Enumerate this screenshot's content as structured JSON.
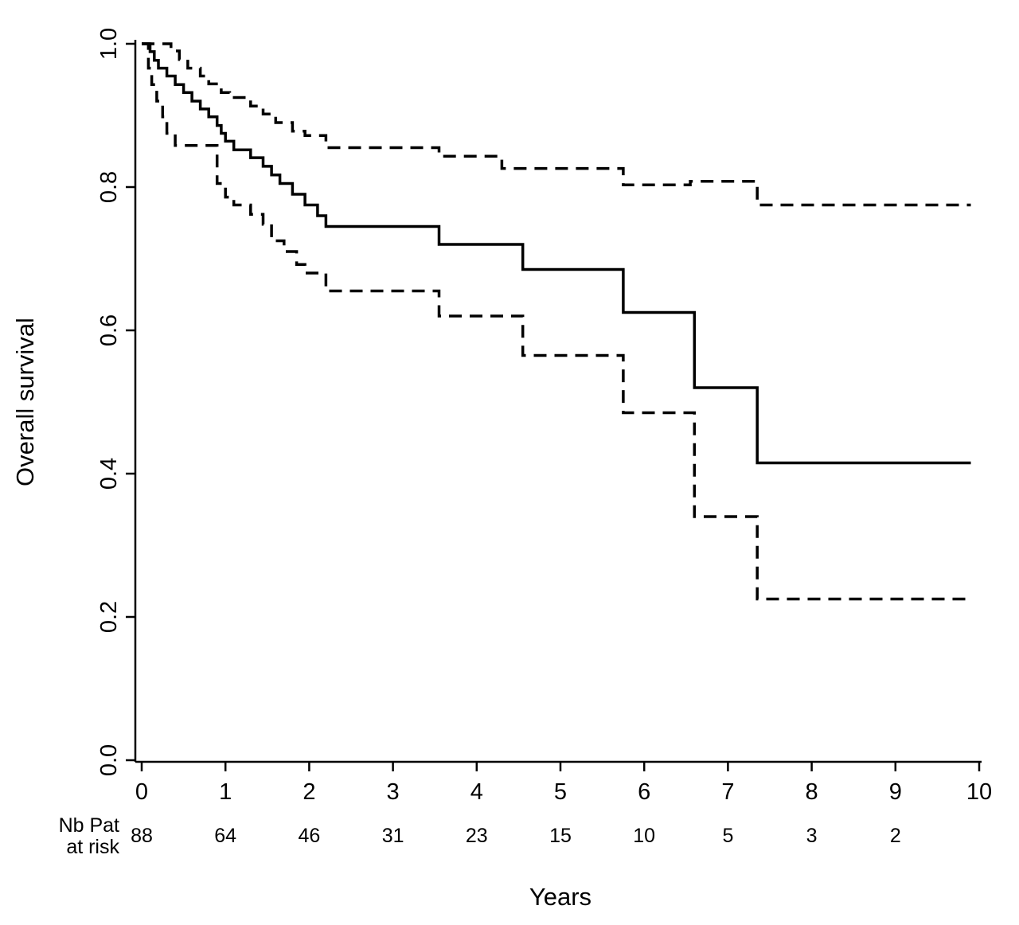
{
  "chart_data": {
    "type": "line",
    "subtype": "kaplan-meier-step",
    "title": "",
    "xlabel": "Years",
    "ylabel": "Overall survival",
    "xlim": [
      0,
      10
    ],
    "ylim": [
      0.0,
      1.0
    ],
    "x_tick_labels": [
      "0",
      "1",
      "2",
      "3",
      "4",
      "5",
      "6",
      "7",
      "8",
      "9",
      "10"
    ],
    "y_tick_labels": [
      "0.0",
      "0.2",
      "0.4",
      "0.6",
      "0.8",
      "1.0"
    ],
    "grid": false,
    "legend_position": "none",
    "line_color": "#000000",
    "background_color": "#ffffff",
    "series": [
      {
        "name": "overall-survival-estimate",
        "style": "solid",
        "points": [
          [
            0,
            1.0
          ],
          [
            0.1,
            0.989
          ],
          [
            0.15,
            0.977
          ],
          [
            0.2,
            0.966
          ],
          [
            0.3,
            0.955
          ],
          [
            0.4,
            0.943
          ],
          [
            0.5,
            0.932
          ],
          [
            0.6,
            0.92
          ],
          [
            0.7,
            0.909
          ],
          [
            0.8,
            0.898
          ],
          [
            0.9,
            0.886
          ],
          [
            0.95,
            0.875
          ],
          [
            1.0,
            0.864
          ],
          [
            1.1,
            0.852
          ],
          [
            1.3,
            0.841
          ],
          [
            1.45,
            0.829
          ],
          [
            1.55,
            0.817
          ],
          [
            1.65,
            0.805
          ],
          [
            1.8,
            0.79
          ],
          [
            1.95,
            0.775
          ],
          [
            2.1,
            0.76
          ],
          [
            2.2,
            0.745
          ],
          [
            3.55,
            0.72
          ],
          [
            4.55,
            0.685
          ],
          [
            5.75,
            0.625
          ],
          [
            6.6,
            0.52
          ],
          [
            7.35,
            0.415
          ],
          [
            9.9,
            0.415
          ]
        ]
      },
      {
        "name": "upper-95ci",
        "style": "dashed",
        "points": [
          [
            0,
            1.0
          ],
          [
            0.35,
            0.99
          ],
          [
            0.45,
            0.978
          ],
          [
            0.55,
            0.966
          ],
          [
            0.7,
            0.955
          ],
          [
            0.8,
            0.944
          ],
          [
            0.95,
            0.932
          ],
          [
            1.05,
            0.925
          ],
          [
            1.3,
            0.913
          ],
          [
            1.45,
            0.902
          ],
          [
            1.6,
            0.89
          ],
          [
            1.8,
            0.878
          ],
          [
            1.95,
            0.872
          ],
          [
            2.2,
            0.855
          ],
          [
            3.55,
            0.843
          ],
          [
            4.3,
            0.826
          ],
          [
            5.75,
            0.803
          ],
          [
            6.55,
            0.808
          ],
          [
            7.35,
            0.775
          ],
          [
            9.9,
            0.775
          ]
        ]
      },
      {
        "name": "lower-95ci",
        "style": "dashed",
        "points": [
          [
            0,
            1.0
          ],
          [
            0.08,
            0.966
          ],
          [
            0.12,
            0.943
          ],
          [
            0.18,
            0.92
          ],
          [
            0.25,
            0.898
          ],
          [
            0.3,
            0.875
          ],
          [
            0.4,
            0.858
          ],
          [
            0.9,
            0.805
          ],
          [
            1.0,
            0.786
          ],
          [
            1.1,
            0.775
          ],
          [
            1.3,
            0.762
          ],
          [
            1.45,
            0.748
          ],
          [
            1.55,
            0.725
          ],
          [
            1.7,
            0.71
          ],
          [
            1.85,
            0.692
          ],
          [
            1.95,
            0.68
          ],
          [
            2.2,
            0.655
          ],
          [
            3.55,
            0.62
          ],
          [
            4.55,
            0.565
          ],
          [
            5.75,
            0.485
          ],
          [
            6.6,
            0.34
          ],
          [
            7.35,
            0.225
          ],
          [
            9.9,
            0.225
          ]
        ]
      }
    ],
    "risk_table": {
      "label_line1": "Nb Pat",
      "label_line2": "at risk",
      "times": [
        0,
        1,
        2,
        3,
        4,
        5,
        6,
        7,
        8,
        9
      ],
      "counts": [
        88,
        64,
        46,
        31,
        23,
        15,
        10,
        5,
        3,
        2
      ]
    }
  }
}
